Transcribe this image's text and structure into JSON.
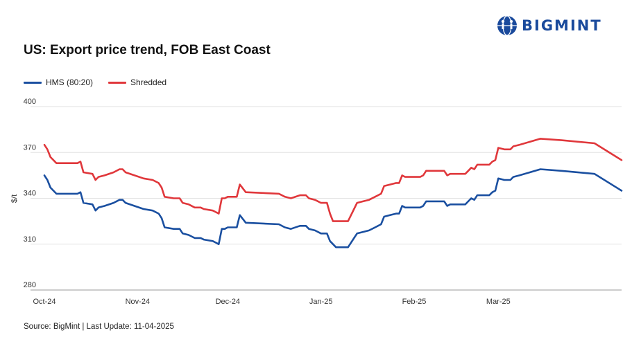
{
  "brand": {
    "name": "BIGMINT",
    "color": "#1a4a9c"
  },
  "chart_data": {
    "type": "line",
    "title": "US: Export price trend, FOB East Coast",
    "xlabel": "",
    "ylabel": "$/t",
    "ylim": [
      280,
      400
    ],
    "yticks": [
      400,
      370,
      340,
      310,
      280
    ],
    "xlim": [
      "2024-10-01",
      "2025-04-11"
    ],
    "xticks": [
      {
        "label": "Oct-24",
        "date": "2024-10-01"
      },
      {
        "label": "Nov-24",
        "date": "2024-11-01"
      },
      {
        "label": "Dec-24",
        "date": "2024-12-01"
      },
      {
        "label": "Jan-25",
        "date": "2025-01-01"
      },
      {
        "label": "Feb-25",
        "date": "2025-02-01"
      },
      {
        "label": "Mar-25",
        "date": "2025-03-01"
      }
    ],
    "grid": true,
    "legend_position": "top-left",
    "series": [
      {
        "name": "HMS (80:20)",
        "color": "#1a4fa0",
        "points": [
          [
            "2024-10-01",
            355
          ],
          [
            "2024-10-02",
            352
          ],
          [
            "2024-10-03",
            347
          ],
          [
            "2024-10-05",
            343
          ],
          [
            "2024-10-08",
            343
          ],
          [
            "2024-10-12",
            343
          ],
          [
            "2024-10-13",
            344
          ],
          [
            "2024-10-14",
            337
          ],
          [
            "2024-10-17",
            336
          ],
          [
            "2024-10-18",
            332
          ],
          [
            "2024-10-19",
            334
          ],
          [
            "2024-10-21",
            335
          ],
          [
            "2024-10-24",
            337
          ],
          [
            "2024-10-26",
            339
          ],
          [
            "2024-10-27",
            339
          ],
          [
            "2024-10-28",
            337
          ],
          [
            "2024-11-03",
            333
          ],
          [
            "2024-11-06",
            332
          ],
          [
            "2024-11-08",
            330
          ],
          [
            "2024-11-09",
            327
          ],
          [
            "2024-11-10",
            321
          ],
          [
            "2024-11-13",
            320
          ],
          [
            "2024-11-15",
            320
          ],
          [
            "2024-11-16",
            317
          ],
          [
            "2024-11-18",
            316
          ],
          [
            "2024-11-20",
            314
          ],
          [
            "2024-11-22",
            314
          ],
          [
            "2024-11-23",
            313
          ],
          [
            "2024-11-26",
            312
          ],
          [
            "2024-11-27",
            311
          ],
          [
            "2024-11-28",
            310
          ],
          [
            "2024-11-29",
            320
          ],
          [
            "2024-11-30",
            320
          ],
          [
            "2024-12-01",
            321
          ],
          [
            "2024-12-04",
            321
          ],
          [
            "2024-12-05",
            329
          ],
          [
            "2024-12-07",
            324
          ],
          [
            "2024-12-18",
            323
          ],
          [
            "2024-12-20",
            321
          ],
          [
            "2024-12-22",
            320
          ],
          [
            "2024-12-25",
            322
          ],
          [
            "2024-12-27",
            322
          ],
          [
            "2024-12-28",
            320
          ],
          [
            "2024-12-30",
            319
          ],
          [
            "2025-01-01",
            317
          ],
          [
            "2025-01-03",
            317
          ],
          [
            "2025-01-04",
            312
          ],
          [
            "2025-01-06",
            308
          ],
          [
            "2025-01-10",
            308
          ],
          [
            "2025-01-13",
            317
          ],
          [
            "2025-01-15",
            318
          ],
          [
            "2025-01-17",
            319
          ],
          [
            "2025-01-19",
            321
          ],
          [
            "2025-01-21",
            323
          ],
          [
            "2025-01-22",
            328
          ],
          [
            "2025-01-24",
            329
          ],
          [
            "2025-01-26",
            330
          ],
          [
            "2025-01-27",
            330
          ],
          [
            "2025-01-28",
            335
          ],
          [
            "2025-01-29",
            334
          ],
          [
            "2025-02-03",
            334
          ],
          [
            "2025-02-04",
            335
          ],
          [
            "2025-02-05",
            338
          ],
          [
            "2025-02-11",
            338
          ],
          [
            "2025-02-12",
            335
          ],
          [
            "2025-02-13",
            336
          ],
          [
            "2025-02-18",
            336
          ],
          [
            "2025-02-19",
            338
          ],
          [
            "2025-02-20",
            340
          ],
          [
            "2025-02-21",
            339
          ],
          [
            "2025-02-22",
            342
          ],
          [
            "2025-02-26",
            342
          ],
          [
            "2025-02-27",
            344
          ],
          [
            "2025-02-28",
            345
          ],
          [
            "2025-03-01",
            353
          ],
          [
            "2025-03-03",
            352
          ],
          [
            "2025-03-05",
            352
          ],
          [
            "2025-03-06",
            354
          ],
          [
            "2025-03-08",
            355
          ],
          [
            "2025-03-15",
            359
          ],
          [
            "2025-03-22",
            358
          ],
          [
            "2025-04-02",
            356
          ],
          [
            "2025-04-11",
            345
          ]
        ]
      },
      {
        "name": "Shredded",
        "color": "#e0373b",
        "points": [
          [
            "2024-10-01",
            375
          ],
          [
            "2024-10-02",
            372
          ],
          [
            "2024-10-03",
            367
          ],
          [
            "2024-10-05",
            363
          ],
          [
            "2024-10-08",
            363
          ],
          [
            "2024-10-12",
            363
          ],
          [
            "2024-10-13",
            364
          ],
          [
            "2024-10-14",
            357
          ],
          [
            "2024-10-17",
            356
          ],
          [
            "2024-10-18",
            352
          ],
          [
            "2024-10-19",
            354
          ],
          [
            "2024-10-21",
            355
          ],
          [
            "2024-10-24",
            357
          ],
          [
            "2024-10-26",
            359
          ],
          [
            "2024-10-27",
            359
          ],
          [
            "2024-10-28",
            357
          ],
          [
            "2024-11-03",
            353
          ],
          [
            "2024-11-06",
            352
          ],
          [
            "2024-11-08",
            350
          ],
          [
            "2024-11-09",
            347
          ],
          [
            "2024-11-10",
            341
          ],
          [
            "2024-11-13",
            340
          ],
          [
            "2024-11-15",
            340
          ],
          [
            "2024-11-16",
            337
          ],
          [
            "2024-11-18",
            336
          ],
          [
            "2024-11-20",
            334
          ],
          [
            "2024-11-22",
            334
          ],
          [
            "2024-11-23",
            333
          ],
          [
            "2024-11-26",
            332
          ],
          [
            "2024-11-27",
            331
          ],
          [
            "2024-11-28",
            330
          ],
          [
            "2024-11-29",
            340
          ],
          [
            "2024-11-30",
            340
          ],
          [
            "2024-12-01",
            341
          ],
          [
            "2024-12-04",
            341
          ],
          [
            "2024-12-05",
            349
          ],
          [
            "2024-12-07",
            344
          ],
          [
            "2024-12-18",
            343
          ],
          [
            "2024-12-20",
            341
          ],
          [
            "2024-12-22",
            340
          ],
          [
            "2024-12-25",
            342
          ],
          [
            "2024-12-27",
            342
          ],
          [
            "2024-12-28",
            340
          ],
          [
            "2024-12-30",
            339
          ],
          [
            "2025-01-01",
            337
          ],
          [
            "2025-01-03",
            337
          ],
          [
            "2025-01-04",
            330
          ],
          [
            "2025-01-05",
            325
          ],
          [
            "2025-01-10",
            325
          ],
          [
            "2025-01-13",
            337
          ],
          [
            "2025-01-15",
            338
          ],
          [
            "2025-01-17",
            339
          ],
          [
            "2025-01-19",
            341
          ],
          [
            "2025-01-21",
            343
          ],
          [
            "2025-01-22",
            348
          ],
          [
            "2025-01-24",
            349
          ],
          [
            "2025-01-26",
            350
          ],
          [
            "2025-01-27",
            350
          ],
          [
            "2025-01-28",
            355
          ],
          [
            "2025-01-29",
            354
          ],
          [
            "2025-02-03",
            354
          ],
          [
            "2025-02-04",
            355
          ],
          [
            "2025-02-05",
            358
          ],
          [
            "2025-02-11",
            358
          ],
          [
            "2025-02-12",
            355
          ],
          [
            "2025-02-13",
            356
          ],
          [
            "2025-02-18",
            356
          ],
          [
            "2025-02-19",
            358
          ],
          [
            "2025-02-20",
            360
          ],
          [
            "2025-02-21",
            359
          ],
          [
            "2025-02-22",
            362
          ],
          [
            "2025-02-26",
            362
          ],
          [
            "2025-02-27",
            364
          ],
          [
            "2025-02-28",
            365
          ],
          [
            "2025-03-01",
            373
          ],
          [
            "2025-03-03",
            372
          ],
          [
            "2025-03-05",
            372
          ],
          [
            "2025-03-06",
            374
          ],
          [
            "2025-03-08",
            375
          ],
          [
            "2025-03-15",
            379
          ],
          [
            "2025-03-22",
            378
          ],
          [
            "2025-04-02",
            376
          ],
          [
            "2025-04-11",
            365
          ]
        ]
      }
    ]
  },
  "footer": {
    "source": "Source: BigMint | Last Update: 11-04-2025"
  }
}
